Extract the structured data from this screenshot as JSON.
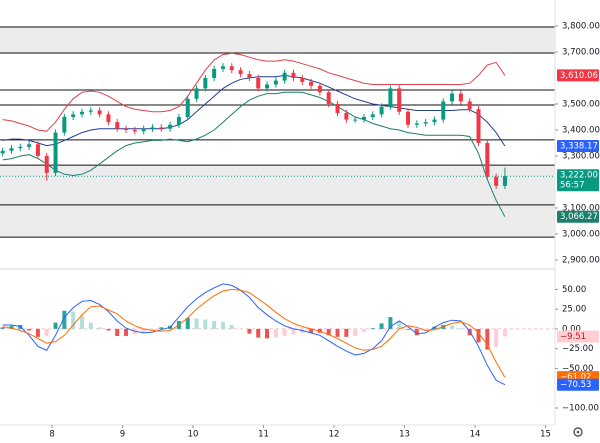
{
  "chart_data": [
    {
      "type": "candlestick",
      "x": [
        7.3,
        7.425,
        7.55,
        7.675,
        7.8,
        7.925,
        8.05,
        8.175,
        8.3,
        8.425,
        8.55,
        8.675,
        8.8,
        8.925,
        9.05,
        9.175,
        9.3,
        9.425,
        9.55,
        9.675,
        9.8,
        9.925,
        10.05,
        10.175,
        10.3,
        10.425,
        10.55,
        10.675,
        10.8,
        10.925,
        11.05,
        11.175,
        11.3,
        11.425,
        11.55,
        11.675,
        11.8,
        11.925,
        12.05,
        12.175,
        12.3,
        12.425,
        12.55,
        12.675,
        12.8,
        12.925,
        13.05,
        13.175,
        13.3,
        13.425,
        13.55,
        13.675,
        13.8,
        13.925,
        14.05,
        14.175,
        14.3,
        14.425
      ],
      "open": [
        3310,
        3320,
        3330,
        3335,
        3345,
        3300,
        3235,
        3390,
        3450,
        3460,
        3470,
        3475,
        3460,
        3430,
        3405,
        3400,
        3395,
        3405,
        3410,
        3405,
        3420,
        3450,
        3520,
        3560,
        3600,
        3635,
        3645,
        3630,
        3615,
        3600,
        3560,
        3575,
        3590,
        3620,
        3600,
        3585,
        3570,
        3545,
        3500,
        3465,
        3440,
        3440,
        3450,
        3460,
        3490,
        3560,
        3470,
        3420,
        3425,
        3430,
        3440,
        3510,
        3540,
        3510,
        3480,
        3350,
        3220,
        3185
      ],
      "high": [
        3332,
        3342,
        3347,
        3357,
        3357,
        3312,
        3402,
        3462,
        3472,
        3482,
        3487,
        3487,
        3472,
        3442,
        3417,
        3412,
        3417,
        3422,
        3422,
        3432,
        3462,
        3532,
        3572,
        3612,
        3647,
        3657,
        3657,
        3642,
        3627,
        3612,
        3587,
        3602,
        3632,
        3632,
        3612,
        3597,
        3582,
        3557,
        3512,
        3477,
        3452,
        3462,
        3472,
        3502,
        3572,
        3572,
        3482,
        3437,
        3442,
        3452,
        3522,
        3552,
        3552,
        3522,
        3492,
        3362,
        3232,
        3255
      ],
      "low": [
        3298,
        3308,
        3318,
        3323,
        3288,
        3205,
        3223,
        3378,
        3438,
        3448,
        3458,
        3448,
        3418,
        3393,
        3388,
        3383,
        3383,
        3393,
        3393,
        3393,
        3408,
        3438,
        3508,
        3548,
        3588,
        3623,
        3618,
        3603,
        3588,
        3548,
        3548,
        3563,
        3578,
        3588,
        3573,
        3558,
        3533,
        3488,
        3453,
        3428,
        3428,
        3428,
        3438,
        3448,
        3478,
        3458,
        3408,
        3408,
        3413,
        3418,
        3428,
        3498,
        3498,
        3468,
        3338,
        3208,
        3173,
        3173
      ],
      "close": [
        3320,
        3330,
        3335,
        3345,
        3300,
        3235,
        3390,
        3450,
        3460,
        3470,
        3475,
        3460,
        3430,
        3405,
        3400,
        3395,
        3405,
        3410,
        3405,
        3420,
        3450,
        3520,
        3560,
        3600,
        3635,
        3645,
        3630,
        3615,
        3600,
        3560,
        3575,
        3590,
        3620,
        3600,
        3585,
        3570,
        3545,
        3500,
        3465,
        3440,
        3440,
        3450,
        3460,
        3490,
        3560,
        3470,
        3420,
        3425,
        3430,
        3440,
        3510,
        3540,
        3510,
        3480,
        3350,
        3220,
        3185,
        3222
      ],
      "up_color": "#089981",
      "down_color": "#f23645",
      "series": [
        {
          "color": "#e0404a",
          "values": [
            3440,
            3435,
            3425,
            3415,
            3400,
            3395,
            3430,
            3480,
            3520,
            3545,
            3550,
            3545,
            3530,
            3510,
            3490,
            3480,
            3475,
            3470,
            3470,
            3475,
            3490,
            3530,
            3580,
            3630,
            3670,
            3690,
            3695,
            3690,
            3680,
            3670,
            3665,
            3665,
            3670,
            3665,
            3655,
            3645,
            3635,
            3620,
            3610,
            3600,
            3590,
            3580,
            3575,
            3575,
            3575,
            3575,
            3575,
            3575,
            3575,
            3575,
            3575,
            3575,
            3575,
            3580,
            3610,
            3650,
            3660,
            3610.06
          ]
        },
        {
          "color": "#1f3f8f",
          "values": [
            3360,
            3365,
            3365,
            3360,
            3350,
            3340,
            3345,
            3360,
            3375,
            3390,
            3400,
            3405,
            3405,
            3405,
            3405,
            3405,
            3405,
            3405,
            3405,
            3410,
            3420,
            3440,
            3470,
            3500,
            3530,
            3560,
            3580,
            3595,
            3600,
            3605,
            3605,
            3605,
            3610,
            3605,
            3600,
            3590,
            3580,
            3565,
            3550,
            3535,
            3520,
            3510,
            3500,
            3495,
            3490,
            3485,
            3480,
            3475,
            3475,
            3475,
            3475,
            3475,
            3478,
            3478,
            3460,
            3430,
            3390,
            3338.17
          ]
        },
        {
          "color": "#1b7f6a",
          "values": [
            3285,
            3290,
            3300,
            3305,
            3290,
            3270,
            3245,
            3230,
            3225,
            3230,
            3245,
            3270,
            3295,
            3320,
            3340,
            3350,
            3355,
            3360,
            3360,
            3365,
            3360,
            3355,
            3365,
            3380,
            3400,
            3430,
            3460,
            3490,
            3515,
            3530,
            3540,
            3540,
            3545,
            3545,
            3545,
            3535,
            3525,
            3510,
            3490,
            3470,
            3450,
            3440,
            3425,
            3415,
            3405,
            3400,
            3390,
            3385,
            3380,
            3380,
            3380,
            3380,
            3380,
            3375,
            3310,
            3210,
            3130,
            3066.27
          ]
        }
      ],
      "xlim": [
        7.262,
        15.135
      ],
      "ylim": [
        2869,
        3900
      ],
      "yticks": [
        {
          "value": 3800,
          "label": "3,800.00"
        },
        {
          "value": 3700,
          "label": "3,700.00"
        },
        {
          "value": 3500,
          "label": "3,500.00"
        },
        {
          "value": 3400,
          "label": "3,400.00"
        },
        {
          "value": 3300,
          "label": "3,300.00"
        },
        {
          "value": 3100,
          "label": "3,100.00"
        },
        {
          "value": 3000,
          "label": "3,000.00"
        },
        {
          "value": 2900,
          "label": "2,900.00"
        }
      ],
      "levels": [
        3796,
        3696,
        3554,
        3496,
        3362,
        3265,
        3112,
        2988
      ],
      "zones": [
        [
          3696,
          3796
        ],
        [
          2988,
          3265
        ]
      ],
      "last_price": {
        "value": 3222,
        "label": "3,222.00",
        "countdown": "56:57",
        "color": "#089981"
      },
      "axis_labels": [
        {
          "value": 3610.06,
          "label": "3,610.06",
          "color": "#f23645"
        },
        {
          "value": 3338.17,
          "label": "3,338.17",
          "color": "#2962ff"
        },
        {
          "value": 3066.27,
          "label": "3,066.27",
          "color": "#1b7f6a"
        }
      ]
    },
    {
      "type": "macd",
      "series": [
        {
          "color": "#2962ff",
          "values": [
            5,
            5,
            3,
            -8,
            -22,
            -27,
            -8,
            15,
            27,
            35,
            36,
            31,
            22,
            10,
            1,
            -3,
            -5,
            -4,
            -1,
            2,
            15,
            28,
            38,
            46,
            52,
            57,
            55,
            49,
            40,
            27,
            18,
            10,
            4,
            0,
            -2,
            -5,
            -8,
            -15,
            -22,
            -28,
            -33,
            -31,
            -25,
            -15,
            3,
            10,
            3,
            -6,
            -5,
            2,
            8,
            11,
            10,
            -3,
            -22,
            -46,
            -65,
            -70.53
          ]
        },
        {
          "color": "#ff6d00",
          "values": [
            3,
            1,
            -2,
            -6,
            -12,
            -18,
            -16,
            -8,
            5,
            18,
            28,
            29,
            24,
            19,
            10,
            4,
            0,
            -2,
            -3,
            -2,
            5,
            14,
            25,
            34,
            42,
            48,
            50,
            49,
            46,
            38,
            30,
            21,
            13,
            7,
            3,
            0,
            -3,
            -7,
            -12,
            -18,
            -24,
            -27,
            -26,
            -22,
            -12,
            0,
            4,
            2,
            -2,
            -1,
            3,
            7,
            9,
            5,
            -5,
            -20,
            -42,
            -61.02
          ]
        }
      ],
      "histogram": [
        2,
        4,
        5,
        -2,
        -10,
        -9,
        8,
        23,
        22,
        17,
        8,
        2,
        -2,
        -9,
        -9,
        -7,
        -5,
        -2,
        2,
        4,
        10,
        14,
        13,
        12,
        10,
        9,
        5,
        0,
        -6,
        -11,
        -12,
        -11,
        -9,
        -7,
        -5,
        -5,
        -5,
        -8,
        -10,
        -10,
        -9,
        -4,
        1,
        7,
        15,
        10,
        -1,
        -8,
        -3,
        3,
        5,
        4,
        1,
        -8,
        -17,
        -26,
        -23,
        -9.51
      ],
      "histogram_colors": {
        "up_strong": "#26a69a",
        "up_weak": "#b2dfdb",
        "down_strong": "#ef5350",
        "down_weak": "#ffcdd2"
      },
      "xlim": [
        7.262,
        15.135
      ],
      "ylim": [
        -121.5,
        72
      ],
      "xticks": [
        8,
        9,
        10,
        11,
        12,
        13,
        14,
        15
      ],
      "yticks": [
        {
          "value": 50,
          "label": "50.00"
        },
        {
          "value": 25,
          "label": "25.00"
        },
        {
          "value": 0,
          "label": "0.00"
        },
        {
          "value": -25,
          "label": "−25.00"
        },
        {
          "value": -50,
          "label": "−50.00"
        },
        {
          "value": -100,
          "label": "−100.00"
        }
      ],
      "axis_labels": [
        {
          "value": -9.51,
          "label": "−9.51",
          "color": "#ffcdd2",
          "text_color": "#b71c1c"
        },
        {
          "value": -61.02,
          "label": "−61.02",
          "color": "#ff6d00"
        },
        {
          "value": -70.53,
          "label": "−70.53",
          "color": "#2962ff"
        }
      ]
    }
  ]
}
